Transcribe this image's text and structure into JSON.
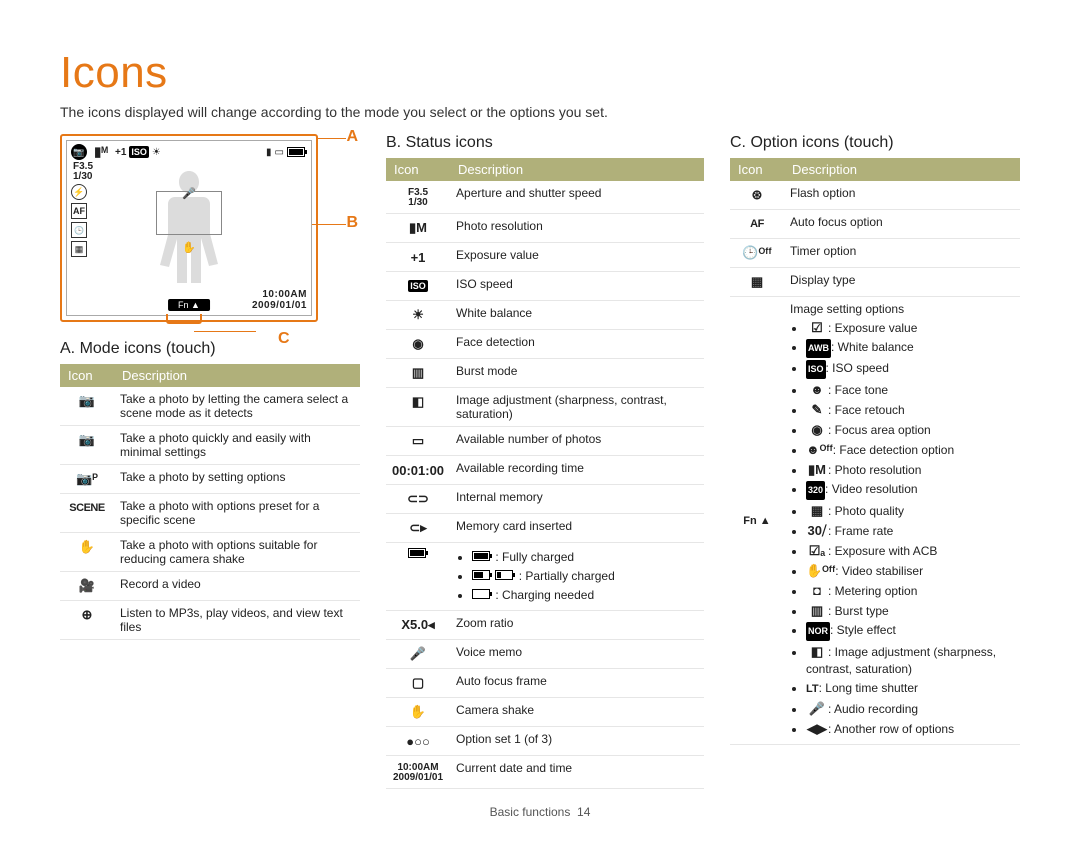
{
  "page": {
    "title": "Icons",
    "intro": "The icons displayed will change according to the mode you select or the options you set.",
    "footer_section": "Basic functions",
    "footer_page": "14"
  },
  "labels": {
    "a": "A",
    "b": "B",
    "c": "C"
  },
  "display": {
    "aperture": "F3.5",
    "shutter": "1/30",
    "time": "10:00AM",
    "date": "2009/01/01",
    "fn": "Fn ▲",
    "ev": "+1"
  },
  "th": {
    "icon": "Icon",
    "desc": "Description"
  },
  "sectionA": {
    "heading": "A. Mode icons (touch)",
    "rows": [
      {
        "glyph": "📷",
        "desc": "Take a photo by letting the camera select a scene mode as it detects"
      },
      {
        "glyph": "📷",
        "desc": "Take a photo quickly and easily with minimal settings"
      },
      {
        "glyph": "📷ᴾ",
        "desc": "Take a photo by setting options"
      },
      {
        "glyph": "SCENE",
        "desc": "Take a photo with options preset for a specific scene"
      },
      {
        "glyph": "✋",
        "desc": "Take a photo with options suitable for reducing camera shake"
      },
      {
        "glyph": "🎥",
        "desc": "Record a video"
      },
      {
        "glyph": "⊕",
        "desc": "Listen to MP3s, play videos, and view text files"
      }
    ]
  },
  "sectionB": {
    "heading": "B. Status icons",
    "rows": [
      {
        "glyph": "F3.5\n1/30",
        "desc": "Aperture and shutter speed"
      },
      {
        "glyph": "▮M",
        "desc": "Photo resolution"
      },
      {
        "glyph": "+1",
        "desc": "Exposure value"
      },
      {
        "glyph": "ISO",
        "desc": "ISO speed"
      },
      {
        "glyph": "☀",
        "desc": "White balance"
      },
      {
        "glyph": "◉",
        "desc": "Face detection"
      },
      {
        "glyph": "▥",
        "desc": "Burst mode"
      },
      {
        "glyph": "◧",
        "desc": "Image adjustment (sharpness, contrast, saturation)"
      },
      {
        "glyph": "▭",
        "desc": "Available number of photos"
      },
      {
        "glyph": "00:01:00",
        "desc": "Available recording time"
      },
      {
        "glyph": "⊂⊃",
        "desc": "Internal memory"
      },
      {
        "glyph": "⊂▸",
        "desc": "Memory card inserted"
      }
    ],
    "battery": {
      "full": ": Fully charged",
      "partial": ": Partially charged",
      "empty": ": Charging needed"
    },
    "rows2": [
      {
        "glyph": "X5.0◂",
        "desc": "Zoom ratio"
      },
      {
        "glyph": "🎤",
        "desc": "Voice memo"
      },
      {
        "glyph": "▢",
        "desc": "Auto focus frame"
      },
      {
        "glyph": "✋",
        "desc": "Camera shake"
      },
      {
        "glyph": "●○○",
        "desc": "Option set 1 (of 3)"
      },
      {
        "glyph": "10:00AM\n2009/01/01",
        "desc": "Current date and time"
      }
    ]
  },
  "sectionC": {
    "heading": "C. Option icons (touch)",
    "rows": [
      {
        "glyph": "⊛",
        "desc": "Flash option"
      },
      {
        "glyph": "AF",
        "desc": "Auto focus option"
      },
      {
        "glyph": "🕒ᴼᶠᶠ",
        "desc": "Timer option"
      },
      {
        "glyph": "▦",
        "desc": "Display type"
      }
    ],
    "options_label": "Image setting options",
    "fn_label": "Fn ▲",
    "bullets": [
      {
        "g": "☑",
        "t": ": Exposure value"
      },
      {
        "g": "AWB",
        "t": ": White balance"
      },
      {
        "g": "ISO",
        "t": ": ISO speed"
      },
      {
        "g": "☻",
        "t": ": Face tone"
      },
      {
        "g": "✎",
        "t": ": Face retouch"
      },
      {
        "g": "◉",
        "t": ": Focus area option"
      },
      {
        "g": "☻ᴼᶠᶠ",
        "t": ": Face detection option"
      },
      {
        "g": "▮M",
        "t": ": Photo resolution"
      },
      {
        "g": "320",
        "t": ": Video resolution"
      },
      {
        "g": "▦",
        "t": ": Photo quality"
      },
      {
        "g": "30⧸",
        "t": ": Frame rate"
      },
      {
        "g": "☑ₐ",
        "t": ": Exposure with ACB"
      },
      {
        "g": "✋ᴼᶠᶠ",
        "t": ": Video stabiliser"
      },
      {
        "g": "◘",
        "t": ": Metering option"
      },
      {
        "g": "▥",
        "t": ": Burst type"
      },
      {
        "g": "NOR",
        "t": ": Style effect"
      },
      {
        "g": "◧",
        "t": ": Image adjustment (sharpness, contrast, saturation)"
      },
      {
        "g": "LT",
        "t": ": Long time shutter"
      },
      {
        "g": "🎤",
        "t": ": Audio recording"
      },
      {
        "g": "◀▶",
        "t": ": Another row of options"
      }
    ]
  }
}
